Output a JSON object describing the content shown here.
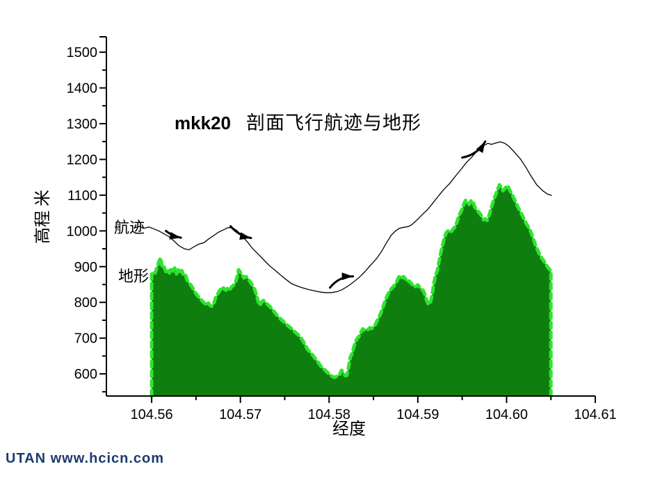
{
  "watermark": {
    "text": "UTAN  www.hcicn.com",
    "color": "#1c3a6e"
  },
  "chart_data": {
    "type": "area",
    "title_code": "mkk20",
    "title_text": "剖面飞行航迹与地形",
    "xlabel": "经度",
    "ylabel": "高程 米",
    "xlim": [
      104.5549,
      104.61
    ],
    "ylim": [
      538,
      1543
    ],
    "grid": false,
    "legend_position": "inline-labels",
    "axis_color": "#000000",
    "x_ticks": {
      "labels": [
        "104.56",
        "104.57",
        "104.58",
        "104.59",
        "104.60",
        "104.61"
      ],
      "values": [
        104.56,
        104.57,
        104.58,
        104.59,
        104.6,
        104.61
      ],
      "minor": [
        104.565,
        104.575,
        104.585,
        104.595,
        104.605
      ]
    },
    "y_ticks": {
      "labels": [
        "600",
        "700",
        "800",
        "900",
        "1000",
        "1100",
        "1200",
        "1300",
        "1400",
        "1500"
      ],
      "values": [
        600,
        700,
        800,
        900,
        1000,
        1100,
        1200,
        1300,
        1400,
        1500
      ],
      "minor": [
        550,
        650,
        750,
        850,
        950,
        1050,
        1150,
        1250,
        1350,
        1450
      ],
      "end_tick": 1543
    },
    "series": [
      {
        "name": "地形",
        "type": "area",
        "fill": "#0e7e0e",
        "edge": "#2ee52e",
        "lon_start": 104.56,
        "lon_step": 0.0002,
        "elevations": [
          878,
          886,
          882,
          898,
          912,
          925,
          896,
          899,
          886,
          892,
          882,
          896,
          888,
          896,
          880,
          891,
          883,
          889,
          875,
          877,
          862,
          855,
          849,
          841,
          832,
          824,
          818,
          811,
          807,
          801,
          797,
          792,
          798,
          791,
          789,
          797,
          812,
          821,
          830,
          837,
          843,
          837,
          834,
          841,
          836,
          843,
          847,
          853,
          868,
          891,
          884,
          876,
          868,
          872,
          870,
          861,
          854,
          845,
          837,
          822,
          803,
          791,
          801,
          805,
          801,
          796,
          791,
          786,
          781,
          774,
          768,
          762,
          757,
          752,
          748,
          743,
          738,
          734,
          730,
          726,
          721,
          716,
          712,
          707,
          701,
          694,
          685,
          676,
          668,
          662,
          657,
          651,
          644,
          637,
          631,
          624,
          618,
          614,
          609,
          604,
          600,
          596,
          592,
          590,
          592,
          595,
          598,
          610,
          604,
          595,
          596,
          620,
          648,
          657,
          676,
          692,
          700,
          706,
          717,
          726,
          722,
          725,
          724,
          729,
          727,
          731,
          737,
          748,
          757,
          768,
          781,
          796,
          810,
          821,
          831,
          838,
          843,
          849,
          857,
          868,
          875,
          869,
          872,
          866,
          858,
          860,
          855,
          849,
          843,
          845,
          849,
          842,
          837,
          833,
          822,
          805,
          794,
          798,
          818,
          853,
          876,
          889,
          915,
          940,
          962,
          982,
          995,
          1000,
          996,
          999,
          1006,
          1011,
          1024,
          1040,
          1051,
          1061,
          1076,
          1086,
          1079,
          1074,
          1085,
          1083,
          1068,
          1059,
          1054,
          1049,
          1040,
          1031,
          1034,
          1029,
          1041,
          1057,
          1075,
          1090,
          1103,
          1117,
          1129,
          1123,
          1112,
          1118,
          1126,
          1123,
          1112,
          1103,
          1093,
          1082,
          1071,
          1061,
          1051,
          1042,
          1031,
          1021,
          1013,
          1005,
          993,
          979,
          964,
          952,
          941,
          930,
          923,
          916,
          908,
          900,
          893,
          888
        ]
      },
      {
        "name": "航迹",
        "type": "line",
        "color": "#000000",
        "points": [
          [
            104.558,
            1008
          ],
          [
            104.5586,
            1013
          ],
          [
            104.5591,
            1007
          ],
          [
            104.5597,
            1011
          ],
          [
            104.5602,
            1006
          ],
          [
            104.5608,
            1000
          ],
          [
            104.5613,
            993
          ],
          [
            104.5619,
            985
          ],
          [
            104.5625,
            972
          ],
          [
            104.5631,
            958
          ],
          [
            104.5637,
            950
          ],
          [
            104.5642,
            947
          ],
          [
            104.5648,
            956
          ],
          [
            104.5653,
            963
          ],
          [
            104.5659,
            967
          ],
          [
            104.5664,
            977
          ],
          [
            104.567,
            987
          ],
          [
            104.5675,
            996
          ],
          [
            104.5681,
            1003
          ],
          [
            104.5686,
            1009
          ],
          [
            104.5691,
            1009
          ],
          [
            104.5696,
            1001
          ],
          [
            104.5702,
            985
          ],
          [
            104.5708,
            969
          ],
          [
            104.5714,
            950
          ],
          [
            104.5721,
            933
          ],
          [
            104.5727,
            917
          ],
          [
            104.5733,
            902
          ],
          [
            104.574,
            888
          ],
          [
            104.5746,
            875
          ],
          [
            104.5752,
            863
          ],
          [
            104.5758,
            852
          ],
          [
            104.5765,
            845
          ],
          [
            104.5771,
            840
          ],
          [
            104.5777,
            836
          ],
          [
            104.5784,
            832
          ],
          [
            104.579,
            829
          ],
          [
            104.5796,
            827
          ],
          [
            104.5802,
            827
          ],
          [
            104.5809,
            830
          ],
          [
            104.5815,
            836
          ],
          [
            104.5821,
            845
          ],
          [
            104.5827,
            856
          ],
          [
            104.5834,
            870
          ],
          [
            104.584,
            885
          ],
          [
            104.5846,
            902
          ],
          [
            104.5853,
            921
          ],
          [
            104.5859,
            942
          ],
          [
            104.5865,
            968
          ],
          [
            104.587,
            988
          ],
          [
            104.5875,
            1000
          ],
          [
            104.5879,
            1007
          ],
          [
            104.5884,
            1010
          ],
          [
            104.5889,
            1012
          ],
          [
            104.5893,
            1017
          ],
          [
            104.5898,
            1028
          ],
          [
            104.5904,
            1043
          ],
          [
            104.5911,
            1060
          ],
          [
            104.5917,
            1078
          ],
          [
            104.5923,
            1097
          ],
          [
            104.5929,
            1115
          ],
          [
            104.5936,
            1133
          ],
          [
            104.5942,
            1152
          ],
          [
            104.5948,
            1170
          ],
          [
            104.5954,
            1189
          ],
          [
            104.5961,
            1207
          ],
          [
            104.5967,
            1224
          ],
          [
            104.5973,
            1237
          ],
          [
            104.5979,
            1245
          ],
          [
            104.5983,
            1242
          ],
          [
            104.5988,
            1246
          ],
          [
            104.5993,
            1249
          ],
          [
            104.5998,
            1245
          ],
          [
            104.6003,
            1236
          ],
          [
            104.6009,
            1220
          ],
          [
            104.6016,
            1200
          ],
          [
            104.6022,
            1177
          ],
          [
            104.6028,
            1152
          ],
          [
            104.6034,
            1129
          ],
          [
            104.6041,
            1112
          ],
          [
            104.6046,
            1103
          ],
          [
            104.6051,
            1099
          ]
        ]
      }
    ],
    "arrows": [
      {
        "tail": [
          104.5616,
          1000
        ],
        "tip": [
          104.5633,
          981
        ],
        "bend": 3
      },
      {
        "tail": [
          104.5689,
          1013
        ],
        "tip": [
          104.5712,
          980
        ],
        "bend": 6
      },
      {
        "tail": [
          104.5801,
          841
        ],
        "tip": [
          104.5827,
          873
        ],
        "bend": -9
      },
      {
        "tail": [
          104.595,
          1205
        ],
        "tip": [
          104.5976,
          1250
        ],
        "bend": 9
      }
    ]
  }
}
